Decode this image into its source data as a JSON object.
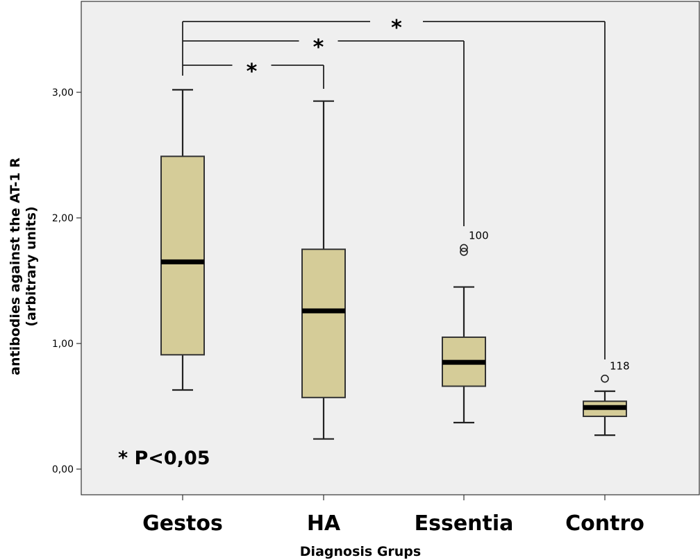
{
  "chart_data": {
    "type": "boxplot",
    "xlabel": "Diagnosis Grups",
    "ylabel_line1": "antibodies against the AT-1 R",
    "ylabel_line2": "(arbitrary units)",
    "ylim": [
      -0.2,
      3.62
    ],
    "yticks": [
      0,
      1,
      2,
      3
    ],
    "ytick_labels": [
      "0,00",
      "1,00",
      "2,00",
      "3,00"
    ],
    "grid": false,
    "categories": [
      "Gestos",
      "HA",
      "Essentia",
      "Contro"
    ],
    "boxes": [
      {
        "category": "Gestos",
        "whisker_low": 0.63,
        "q1": 0.91,
        "median": 1.65,
        "q3": 2.49,
        "whisker_high": 3.02,
        "outliers": []
      },
      {
        "category": "HA",
        "whisker_low": 0.24,
        "q1": 0.57,
        "median": 1.26,
        "q3": 1.75,
        "whisker_high": 2.93,
        "outliers": []
      },
      {
        "category": "Essentia",
        "whisker_low": 0.37,
        "q1": 0.66,
        "median": 0.85,
        "q3": 1.05,
        "whisker_high": 1.45,
        "outliers": [
          {
            "value": 1.73,
            "label": ""
          },
          {
            "value": 1.76,
            "label": "100"
          }
        ]
      },
      {
        "category": "Contro",
        "whisker_low": 0.27,
        "q1": 0.42,
        "median": 0.49,
        "q3": 0.54,
        "whisker_high": 0.62,
        "outliers": [
          {
            "value": 0.72,
            "label": "118"
          }
        ]
      }
    ],
    "significance_brackets": [
      {
        "from": "Gestos",
        "to": "HA",
        "label": "*"
      },
      {
        "from": "Gestos",
        "to": "Essentia",
        "label": "*"
      },
      {
        "from": "Gestos",
        "to": "Contro",
        "label": "*"
      }
    ],
    "annotation": "* P<0,05",
    "colors": {
      "plot_background": "#efefef",
      "box_fill": "#d5cc98",
      "box_stroke": "#333333",
      "median": "#000000"
    }
  }
}
